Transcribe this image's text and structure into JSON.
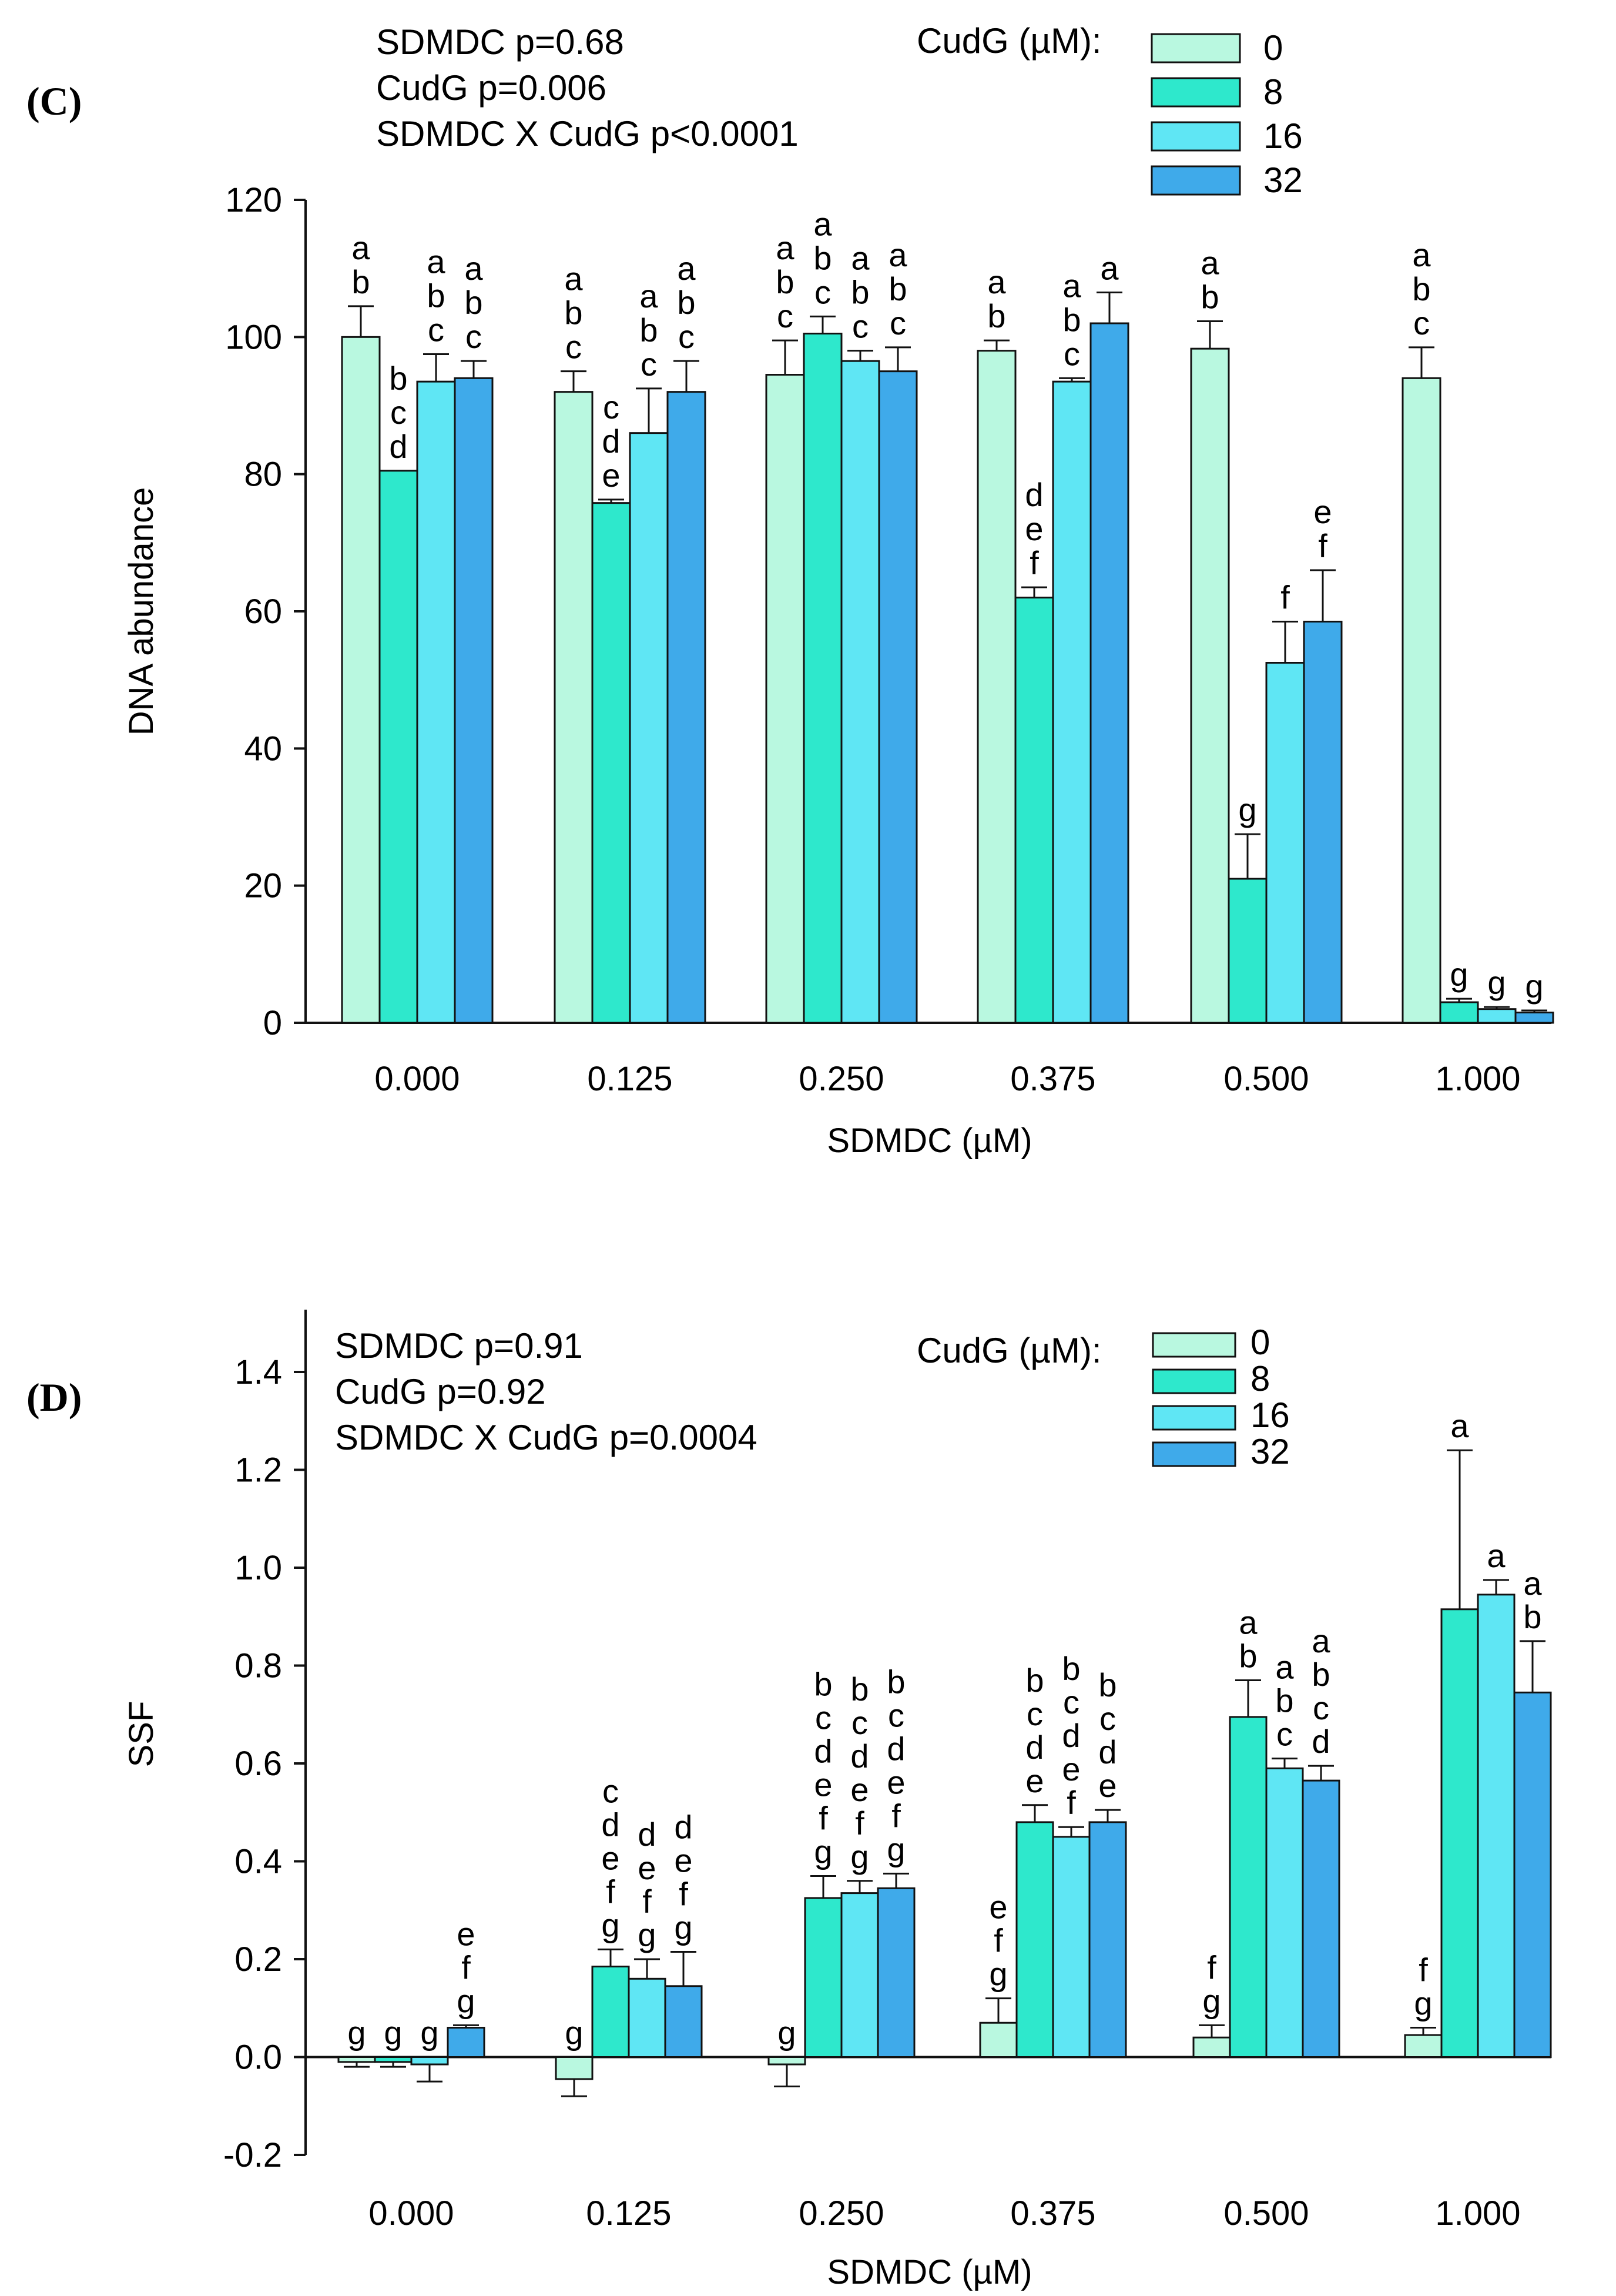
{
  "colors": {
    "c0": "#b9f8e0",
    "c8": "#2ee8cc",
    "c16": "#5fe6f4",
    "c32": "#3faaea",
    "stroke": "#111111"
  },
  "chart_data": [
    {
      "panel": "(C)",
      "type": "bar",
      "ylabel": "DNA abundance",
      "xlabel": "SDMDC (µM)",
      "ylim": [
        0,
        120
      ],
      "yticks": [
        "0",
        "20",
        "40",
        "60",
        "80",
        "100",
        "120"
      ],
      "ytick_values": [
        0,
        20,
        40,
        60,
        80,
        100,
        120
      ],
      "categories": [
        "0.000",
        "0.125",
        "0.250",
        "0.375",
        "0.500",
        "1.000"
      ],
      "stats": [
        "SDMDC p=0.68",
        "CudG p=0.006",
        "SDMDC X CudG p<0.0001"
      ],
      "legend_title": "CudG (µM):",
      "series": [
        {
          "name": "0",
          "values": [
            100,
            92,
            94.5,
            98,
            98.3,
            94
          ],
          "errors": [
            4.5,
            3,
            5,
            1.5,
            4,
            4.5
          ],
          "letters": [
            [
              "a",
              "b"
            ],
            [
              "a",
              "b",
              "c"
            ],
            [
              "a",
              "b",
              "c"
            ],
            [
              "a",
              "b"
            ],
            [
              "a",
              "b"
            ],
            [
              "a",
              "b",
              "c"
            ]
          ]
        },
        {
          "name": "8",
          "values": [
            80.5,
            75.8,
            100.5,
            62,
            21,
            3
          ],
          "errors": [
            0,
            0.5,
            2.5,
            1.5,
            6.5,
            0.5
          ],
          "letters": [
            [
              "b",
              "c",
              "d"
            ],
            [
              "c",
              "d",
              "e"
            ],
            [
              "a",
              "b",
              "c"
            ],
            [
              "d",
              "e",
              "f"
            ],
            [
              "g"
            ],
            [
              "g"
            ]
          ]
        },
        {
          "name": "16",
          "values": [
            93.5,
            86,
            96.5,
            93.5,
            52.5,
            2
          ],
          "errors": [
            4,
            6.5,
            1.5,
            0.5,
            6,
            0.3
          ],
          "letters": [
            [
              "a",
              "b",
              "c"
            ],
            [
              "a",
              "b",
              "c"
            ],
            [
              "a",
              "b",
              "c"
            ],
            [
              "a",
              "b",
              "c"
            ],
            [
              "f"
            ],
            [
              "g"
            ]
          ]
        },
        {
          "name": "32",
          "values": [
            94,
            92,
            95,
            102,
            58.5,
            1.5
          ],
          "errors": [
            2.5,
            4.5,
            3.5,
            4.5,
            7.5,
            0.3
          ],
          "letters": [
            [
              "a",
              "b",
              "c"
            ],
            [
              "a",
              "b",
              "c"
            ],
            [
              "a",
              "b",
              "c"
            ],
            [
              "a"
            ],
            [
              "e",
              "f"
            ],
            [
              "g"
            ]
          ]
        }
      ]
    },
    {
      "panel": "(D)",
      "type": "bar",
      "ylabel": "SSF",
      "xlabel": "SDMDC (µM)",
      "ylim": [
        -0.2,
        1.5
      ],
      "yticks": [
        "-0.2",
        "0.0",
        "0.2",
        "0.4",
        "0.6",
        "0.8",
        "1.0",
        "1.2",
        "1.4"
      ],
      "ytick_values": [
        -0.2,
        0,
        0.2,
        0.4,
        0.6,
        0.8,
        1.0,
        1.2,
        1.4
      ],
      "categories": [
        "0.000",
        "0.125",
        "0.250",
        "0.375",
        "0.500",
        "1.000"
      ],
      "stats": [
        "SDMDC p=0.91",
        "CudG p=0.92",
        "SDMDC X CudG p=0.0004"
      ],
      "legend_title": "CudG (µM):",
      "series": [
        {
          "name": "0",
          "values": [
            -0.01,
            -0.045,
            -0.015,
            0.07,
            0.04,
            0.045
          ],
          "errors": [
            0.01,
            0.035,
            0.045,
            0.05,
            0.025,
            0.015
          ],
          "letters": [
            [
              "g"
            ],
            [
              "g"
            ],
            [
              "g"
            ],
            [
              "e",
              "f",
              "g"
            ],
            [
              "f",
              "g"
            ],
            [
              "f",
              "g"
            ]
          ]
        },
        {
          "name": "8",
          "values": [
            -0.01,
            0.185,
            0.325,
            0.48,
            0.695,
            0.915
          ],
          "errors": [
            0.01,
            0.035,
            0.045,
            0.035,
            0.075,
            0.325
          ],
          "letters": [
            [
              "g"
            ],
            [
              "c",
              "d",
              "e",
              "f",
              "g"
            ],
            [
              "b",
              "c",
              "d",
              "e",
              "f",
              "g"
            ],
            [
              "b",
              "c",
              "d",
              "e"
            ],
            [
              "a",
              "b"
            ],
            [
              "a"
            ]
          ]
        },
        {
          "name": "16",
          "values": [
            -0.015,
            0.16,
            0.335,
            0.45,
            0.59,
            0.945
          ],
          "errors": [
            0.035,
            0.04,
            0.025,
            0.02,
            0.02,
            0.03
          ],
          "letters": [
            [
              "g"
            ],
            [
              "d",
              "e",
              "f",
              "g"
            ],
            [
              "b",
              "c",
              "d",
              "e",
              "f",
              "g"
            ],
            [
              "b",
              "c",
              "d",
              "e",
              "f"
            ],
            [
              "a",
              "b",
              "c"
            ],
            [
              "a"
            ]
          ]
        },
        {
          "name": "32",
          "values": [
            0.06,
            0.145,
            0.345,
            0.48,
            0.565,
            0.745
          ],
          "errors": [
            0.005,
            0.07,
            0.03,
            0.025,
            0.03,
            0.105
          ],
          "letters": [
            [
              "e",
              "f",
              "g"
            ],
            [
              "d",
              "e",
              "f",
              "g"
            ],
            [
              "b",
              "c",
              "d",
              "e",
              "f",
              "g"
            ],
            [
              "b",
              "c",
              "d",
              "e"
            ],
            [
              "a",
              "b",
              "c",
              "d"
            ],
            [
              "a",
              "b"
            ]
          ]
        }
      ]
    }
  ]
}
